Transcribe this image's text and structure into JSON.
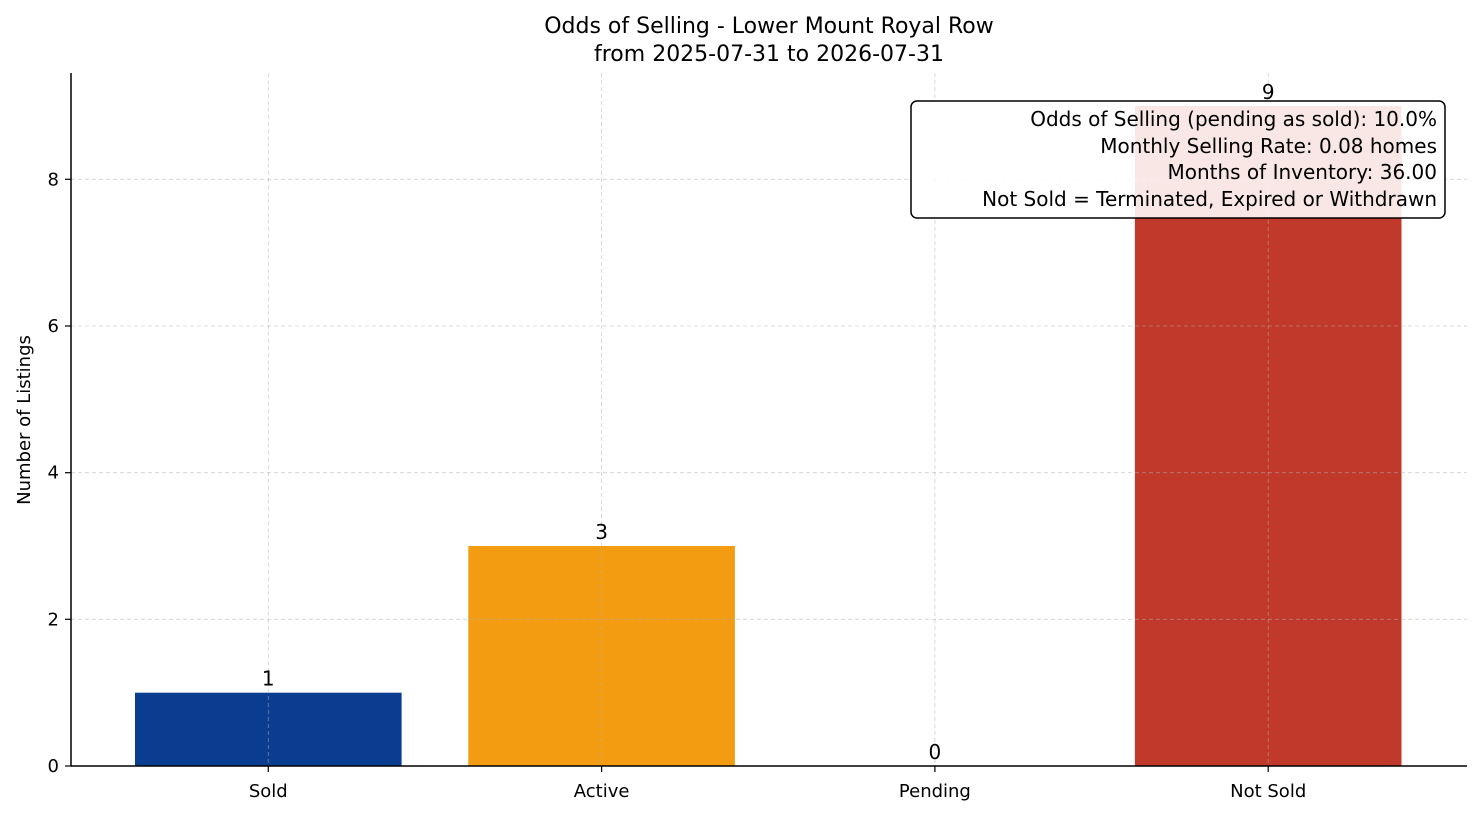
{
  "chart_data": {
    "type": "bar",
    "title": "Odds of Selling - Lower Mount Royal Row",
    "subtitle": "from 2025-07-31 to 2026-07-31",
    "xlabel": "",
    "ylabel": "Number of Listings",
    "categories": [
      "Sold",
      "Active",
      "Pending",
      "Not Sold"
    ],
    "values": [
      1,
      3,
      0,
      9
    ],
    "value_labels": [
      "1",
      "3",
      "0",
      "9"
    ],
    "colors": [
      "#0a3d8f",
      "#f39c12",
      "#7f8c8d",
      "#c0392b"
    ],
    "ylim": [
      0,
      9.45
    ],
    "yticks": [
      0,
      2,
      4,
      6,
      8
    ],
    "ytick_labels": [
      "0",
      "2",
      "4",
      "6",
      "8"
    ],
    "grid": true,
    "annotation_box": {
      "position": "top-right",
      "lines": [
        "Odds of Selling (pending as sold): 10.0%",
        "Monthly Selling Rate: 0.08 homes",
        "Months of Inventory: 36.00",
        "Not Sold = Terminated, Expired or Withdrawn"
      ]
    }
  }
}
